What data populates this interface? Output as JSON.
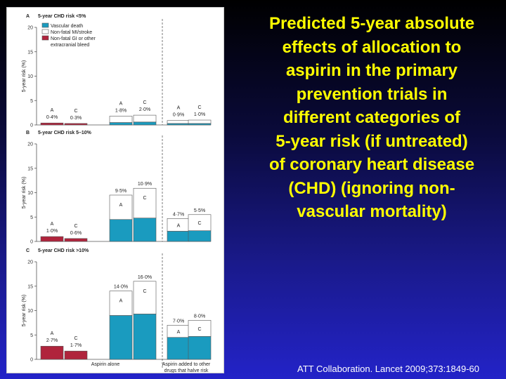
{
  "slide": {
    "title": "Predicted 5-year absolute effects of allocation to aspirin in the primary prevention trials in different categories of 5-year risk (if untreated) of coronary heart disease (CHD) (ignoring non-vascular mortality)",
    "title_lines": [
      "Predicted 5-year absolute",
      "effects of allocation to",
      "aspirin in the primary",
      "prevention trials in",
      "different categories of",
      "5-year risk (if untreated)",
      "of coronary heart disease",
      "(CHD) (ignoring non-",
      "vascular mortality)"
    ],
    "citation": "ATT Collaboration. Lancet 2009;373:1849-60",
    "title_color": "#ffff00"
  },
  "chart_data": {
    "type": "bar",
    "stacked": true,
    "ylabel": "5-year risk (%)",
    "ylim": [
      0,
      20
    ],
    "yticks": [
      0,
      5,
      10,
      15,
      20
    ],
    "legend": [
      {
        "name": "Vascular death",
        "color": "#1a9bbf"
      },
      {
        "name": "Non-fatal MI/stroke",
        "color": "#ffffff"
      },
      {
        "name": "Non-fatal GI or other extracranial bleed",
        "color": "#b0243c"
      }
    ],
    "legend_lines": [
      "Vascular death",
      "Non-fatal MI/stroke",
      "Non-fatal GI or other",
      "extracranial bleed"
    ],
    "group_labels": [
      "Aspirin alone",
      "Aspirin added to other drugs that halve risk"
    ],
    "group_label_lines": [
      [
        "Aspirin alone"
      ],
      [
        "Aspirin added to other",
        "drugs that halve risk"
      ]
    ],
    "bar_letters": [
      "A",
      "C"
    ],
    "panels": [
      {
        "letter": "A",
        "title": "5-year CHD risk <5%",
        "bars": [
          {
            "group": "bleed",
            "letter": "A",
            "label": "0·4%",
            "segments": {
              "bleed": 0.4
            }
          },
          {
            "group": "bleed",
            "letter": "C",
            "label": "0·3%",
            "segments": {
              "bleed": 0.3
            }
          },
          {
            "group": "vascular",
            "letter": "A",
            "label": "1·8%",
            "segments": {
              "death": 0.5,
              "mi": 1.3
            }
          },
          {
            "group": "vascular",
            "letter": "C",
            "label": "2·0%",
            "segments": {
              "death": 0.6,
              "mi": 1.4
            }
          },
          {
            "group": "added",
            "letter": "A",
            "label": "0·9%",
            "segments": {
              "death": 0.3,
              "mi": 0.6
            }
          },
          {
            "group": "added",
            "letter": "C",
            "label": "1·0%",
            "segments": {
              "death": 0.3,
              "mi": 0.7
            }
          }
        ]
      },
      {
        "letter": "B",
        "title": "5-year CHD risk 5–10%",
        "bars": [
          {
            "group": "bleed",
            "letter": "A",
            "label": "1·0%",
            "segments": {
              "bleed": 1.0
            }
          },
          {
            "group": "bleed",
            "letter": "C",
            "label": "0·6%",
            "segments": {
              "bleed": 0.6
            }
          },
          {
            "group": "vascular",
            "letter": "A",
            "label": "9·5%",
            "segments": {
              "death": 4.5,
              "mi": 5.0
            }
          },
          {
            "group": "vascular",
            "letter": "C",
            "label": "10·9%",
            "segments": {
              "death": 4.8,
              "mi": 6.1
            }
          },
          {
            "group": "added",
            "letter": "A",
            "label": "4·7%",
            "segments": {
              "death": 2.1,
              "mi": 2.6
            }
          },
          {
            "group": "added",
            "letter": "C",
            "label": "5·5%",
            "segments": {
              "death": 2.2,
              "mi": 3.3
            }
          }
        ]
      },
      {
        "letter": "C",
        "title": "5-year CHD risk >10%",
        "bars": [
          {
            "group": "bleed",
            "letter": "A",
            "label": "2·7%",
            "segments": {
              "bleed": 2.7
            }
          },
          {
            "group": "bleed",
            "letter": "C",
            "label": "1·7%",
            "segments": {
              "bleed": 1.7
            }
          },
          {
            "group": "vascular",
            "letter": "A",
            "label": "14·0%",
            "segments": {
              "death": 9.0,
              "mi": 5.0
            }
          },
          {
            "group": "vascular",
            "letter": "C",
            "label": "16·0%",
            "segments": {
              "death": 9.3,
              "mi": 6.7
            }
          },
          {
            "group": "added",
            "letter": "A",
            "label": "7·0%",
            "segments": {
              "death": 4.5,
              "mi": 2.5
            }
          },
          {
            "group": "added",
            "letter": "C",
            "label": "8·0%",
            "segments": {
              "death": 4.7,
              "mi": 3.3
            }
          }
        ]
      }
    ]
  }
}
